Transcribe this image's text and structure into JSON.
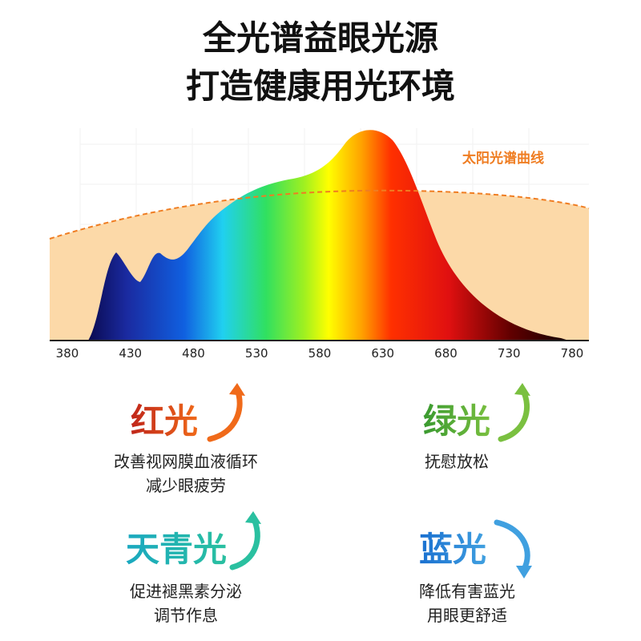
{
  "title": [
    "全光谱益眼光源",
    "打造健康用光环境"
  ],
  "spectrum": {
    "label": "太阳光谱曲线",
    "xticks": [
      380,
      430,
      480,
      530,
      580,
      630,
      680,
      730,
      780
    ]
  },
  "cards": [
    {
      "name": "红光",
      "lines": [
        "改善视网膜血液循环",
        "减少眼疲劳"
      ]
    },
    {
      "name": "绿光",
      "lines": [
        "抚慰放松"
      ]
    },
    {
      "name": "天青光",
      "lines": [
        "促进褪黑素分泌",
        "调节作息"
      ]
    },
    {
      "name": "蓝光",
      "lines": [
        "降低有害蓝光",
        "用眼更舒适"
      ]
    }
  ]
}
